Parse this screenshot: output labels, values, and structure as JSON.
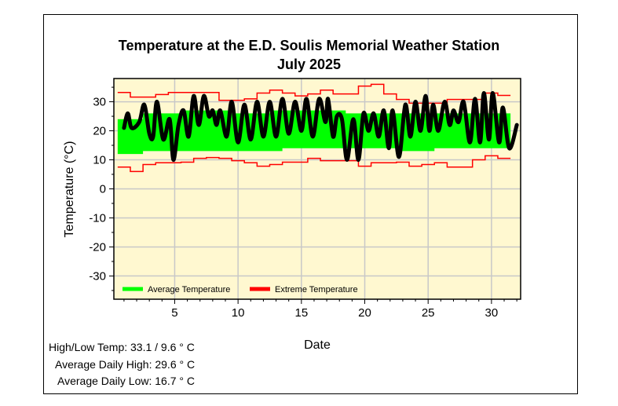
{
  "chart_data": {
    "type": "line",
    "title": "Temperature at the E.D. Soulis Memorial Weather Station",
    "subtitle": "July 2025",
    "xlabel": "Date",
    "ylabel": "Temperature (°C)",
    "xlim": [
      0.2,
      32.3
    ],
    "ylim": [
      -38,
      38
    ],
    "xticks": [
      5,
      10,
      15,
      20,
      25,
      30
    ],
    "yticks": [
      -30,
      -20,
      -10,
      0,
      10,
      20,
      30
    ],
    "grid": true,
    "legend_placement": "bottom-left",
    "legend": [
      {
        "label": "Average Temperature",
        "color": "#00ff00"
      },
      {
        "label": "Extreme Temperature",
        "color": "#ff0000"
      }
    ],
    "days": [
      1,
      2,
      3,
      4,
      5,
      6,
      7,
      8,
      9,
      10,
      11,
      12,
      13,
      14,
      15,
      16,
      17,
      18,
      19,
      20,
      21,
      22,
      23,
      24,
      25,
      26,
      27,
      28,
      29,
      30,
      31
    ],
    "extreme_high": [
      33.2,
      31.6,
      31.6,
      32.5,
      33.2,
      33.2,
      33.2,
      33.2,
      30.5,
      30.5,
      31,
      33,
      34,
      33,
      32,
      32.7,
      34,
      32.7,
      32.7,
      35.4,
      36,
      32.7,
      30.8,
      29.5,
      29.5,
      29.5,
      30.8,
      30.8,
      30.8,
      33,
      32.2
    ],
    "extreme_low": [
      7.5,
      6,
      8.4,
      9,
      9,
      9.2,
      10.5,
      10.8,
      10.5,
      9.7,
      9,
      7.8,
      8.4,
      9.2,
      9.2,
      10.5,
      9.7,
      9.7,
      9.7,
      7.8,
      9,
      9,
      9.2,
      7.8,
      8.4,
      9,
      7.5,
      7.5,
      10,
      11.4,
      10.5
    ],
    "average_high": [
      24,
      24,
      26,
      26,
      26,
      27,
      27,
      27,
      27,
      26,
      26,
      26,
      27,
      27,
      27,
      27,
      27,
      27,
      26,
      26,
      26,
      26,
      26,
      26,
      26,
      26,
      26,
      26,
      26,
      26,
      26
    ],
    "average_low": [
      12,
      12,
      13,
      13,
      13,
      13,
      13,
      13,
      13,
      13,
      13,
      13,
      13,
      14,
      14,
      14,
      14,
      14,
      14,
      14,
      14,
      14,
      13,
      13,
      13,
      14,
      14,
      14,
      14,
      14,
      14
    ],
    "series": [
      {
        "name": "Temperature",
        "color": "#000000",
        "x": [
          1.0,
          1.3,
          1.6,
          2.2,
          2.6,
          3.0,
          3.3,
          3.6,
          4.1,
          4.6,
          4.9,
          5.3,
          5.7,
          6.1,
          6.5,
          6.9,
          7.3,
          7.7,
          8.0,
          8.3,
          8.6,
          9.1,
          9.5,
          10.0,
          10.5,
          11.0,
          11.5,
          12.0,
          12.5,
          13.0,
          13.5,
          14.0,
          14.5,
          15.0,
          15.4,
          15.9,
          16.4,
          16.9,
          17.1,
          17.5,
          17.8,
          18.2,
          18.6,
          19.1,
          19.5,
          19.9,
          20.3,
          20.7,
          21.1,
          21.5,
          21.9,
          22.2,
          22.7,
          23.2,
          23.6,
          24.0,
          24.4,
          24.8,
          25.1,
          25.4,
          25.8,
          26.3,
          26.7,
          27.0,
          27.4,
          27.8,
          28.3,
          28.7,
          29.1,
          29.4,
          29.8,
          30.1,
          30.6,
          30.9,
          31.4,
          32.0
        ],
        "y": [
          21,
          26,
          21,
          23,
          29,
          19,
          18,
          30,
          17,
          24,
          10,
          22,
          27,
          18,
          32,
          22,
          32,
          25,
          27,
          22,
          27,
          18,
          30,
          16,
          29,
          17,
          30,
          18,
          30,
          18,
          31,
          19,
          30,
          20,
          31,
          18,
          31,
          23,
          31,
          18,
          25,
          24,
          10,
          24,
          10,
          26,
          20,
          26,
          18,
          27,
          14,
          27,
          11,
          29,
          18,
          30,
          20,
          32,
          20,
          29,
          20,
          30,
          22,
          27,
          23,
          30,
          16,
          31,
          16,
          33,
          17,
          33,
          16,
          28,
          14,
          22
        ]
      }
    ]
  },
  "stats": {
    "high_low": "High/Low Temp:  33.1 / 9.6 ° C",
    "avg_high": "Average Daily High:  29.6 ° C",
    "avg_low": "Average Daily Low:  16.7 ° C"
  }
}
